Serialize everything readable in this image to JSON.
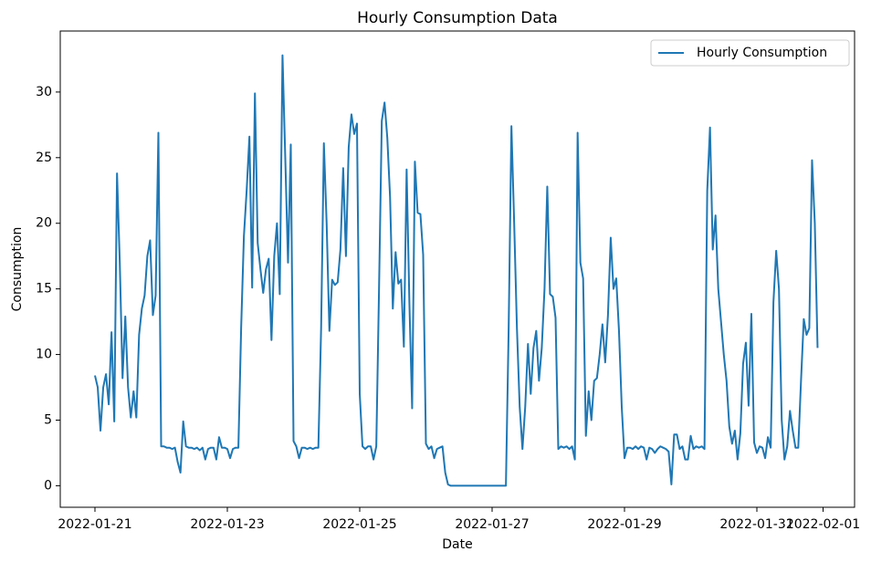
{
  "chart_data": {
    "type": "line",
    "title": "Hourly Consumption Data",
    "xlabel": "Date",
    "ylabel": "Consumption",
    "legend": "upper right",
    "xlim": [
      "2022-01-20T11:25",
      "2022-02-01T11:25"
    ],
    "xticks": [
      "2022-01-21",
      "2022-01-23",
      "2022-01-25",
      "2022-01-27",
      "2022-01-29",
      "2022-01-31",
      "2022-02-01"
    ],
    "ylim": [
      -1.64,
      34.65
    ],
    "yticks": [
      0,
      5,
      10,
      15,
      20,
      25,
      30
    ],
    "x": [
      "2022-01-21T00:00",
      "2022-01-21T01:00",
      "2022-01-21T02:00",
      "2022-01-21T03:00",
      "2022-01-21T04:00",
      "2022-01-21T05:00",
      "2022-01-21T06:00",
      "2022-01-21T07:00",
      "2022-01-21T08:00",
      "2022-01-21T09:00",
      "2022-01-21T10:00",
      "2022-01-21T11:00",
      "2022-01-21T12:00",
      "2022-01-21T13:00",
      "2022-01-21T14:00",
      "2022-01-21T15:00",
      "2022-01-21T16:00",
      "2022-01-21T17:00",
      "2022-01-21T18:00",
      "2022-01-21T19:00",
      "2022-01-21T20:00",
      "2022-01-21T21:00",
      "2022-01-21T22:00",
      "2022-01-21T23:00",
      "2022-01-22T00:00",
      "2022-01-22T01:00",
      "2022-01-22T02:00",
      "2022-01-22T03:00",
      "2022-01-22T04:00",
      "2022-01-22T05:00",
      "2022-01-22T06:00",
      "2022-01-22T07:00",
      "2022-01-22T08:00",
      "2022-01-22T09:00",
      "2022-01-22T10:00",
      "2022-01-22T11:00",
      "2022-01-22T12:00",
      "2022-01-22T13:00",
      "2022-01-22T14:00",
      "2022-01-22T15:00",
      "2022-01-22T16:00",
      "2022-01-22T17:00",
      "2022-01-22T18:00",
      "2022-01-22T19:00",
      "2022-01-22T20:00",
      "2022-01-22T21:00",
      "2022-01-22T22:00",
      "2022-01-22T23:00",
      "2022-01-23T00:00",
      "2022-01-23T01:00",
      "2022-01-23T02:00",
      "2022-01-23T03:00",
      "2022-01-23T04:00",
      "2022-01-23T05:00",
      "2022-01-23T06:00",
      "2022-01-23T07:00",
      "2022-01-23T08:00",
      "2022-01-23T09:00",
      "2022-01-23T10:00",
      "2022-01-23T11:00",
      "2022-01-23T12:00",
      "2022-01-23T13:00",
      "2022-01-23T14:00",
      "2022-01-23T15:00",
      "2022-01-23T16:00",
      "2022-01-23T17:00",
      "2022-01-23T18:00",
      "2022-01-23T19:00",
      "2022-01-23T20:00",
      "2022-01-23T21:00",
      "2022-01-23T22:00",
      "2022-01-23T23:00",
      "2022-01-24T00:00",
      "2022-01-24T01:00",
      "2022-01-24T02:00",
      "2022-01-24T03:00",
      "2022-01-24T04:00",
      "2022-01-24T05:00",
      "2022-01-24T06:00",
      "2022-01-24T07:00",
      "2022-01-24T08:00",
      "2022-01-24T09:00",
      "2022-01-24T10:00",
      "2022-01-24T11:00",
      "2022-01-24T12:00",
      "2022-01-24T13:00",
      "2022-01-24T14:00",
      "2022-01-24T15:00",
      "2022-01-24T16:00",
      "2022-01-24T17:00",
      "2022-01-24T18:00",
      "2022-01-24T19:00",
      "2022-01-24T20:00",
      "2022-01-24T21:00",
      "2022-01-24T22:00",
      "2022-01-24T23:00",
      "2022-01-25T00:00",
      "2022-01-25T01:00",
      "2022-01-25T02:00",
      "2022-01-25T03:00",
      "2022-01-25T04:00",
      "2022-01-25T05:00",
      "2022-01-25T06:00",
      "2022-01-25T07:00",
      "2022-01-25T08:00",
      "2022-01-25T09:00",
      "2022-01-25T10:00",
      "2022-01-25T11:00",
      "2022-01-25T12:00",
      "2022-01-25T13:00",
      "2022-01-25T14:00",
      "2022-01-25T15:00",
      "2022-01-25T16:00",
      "2022-01-25T17:00",
      "2022-01-25T18:00",
      "2022-01-25T19:00",
      "2022-01-25T20:00",
      "2022-01-25T21:00",
      "2022-01-25T22:00",
      "2022-01-25T23:00",
      "2022-01-26T00:00",
      "2022-01-26T01:00",
      "2022-01-26T02:00",
      "2022-01-26T03:00",
      "2022-01-26T04:00",
      "2022-01-26T05:00",
      "2022-01-26T06:00",
      "2022-01-26T07:00",
      "2022-01-26T08:00",
      "2022-01-26T09:00",
      "2022-01-26T10:00",
      "2022-01-26T11:00",
      "2022-01-26T12:00",
      "2022-01-26T13:00",
      "2022-01-26T14:00",
      "2022-01-26T15:00",
      "2022-01-26T16:00",
      "2022-01-26T17:00",
      "2022-01-26T18:00",
      "2022-01-26T19:00",
      "2022-01-26T20:00",
      "2022-01-26T21:00",
      "2022-01-26T22:00",
      "2022-01-26T23:00",
      "2022-01-27T00:00",
      "2022-01-27T01:00",
      "2022-01-27T02:00",
      "2022-01-27T03:00",
      "2022-01-27T04:00",
      "2022-01-27T05:00",
      "2022-01-27T06:00",
      "2022-01-27T07:00",
      "2022-01-27T08:00",
      "2022-01-27T09:00",
      "2022-01-27T10:00",
      "2022-01-27T11:00",
      "2022-01-27T12:00",
      "2022-01-27T13:00",
      "2022-01-27T14:00",
      "2022-01-27T15:00",
      "2022-01-27T16:00",
      "2022-01-27T17:00",
      "2022-01-27T18:00",
      "2022-01-27T19:00",
      "2022-01-27T20:00",
      "2022-01-27T21:00",
      "2022-01-27T22:00",
      "2022-01-27T23:00",
      "2022-01-28T00:00",
      "2022-01-28T01:00",
      "2022-01-28T02:00",
      "2022-01-28T03:00",
      "2022-01-28T04:00",
      "2022-01-28T05:00",
      "2022-01-28T06:00",
      "2022-01-28T07:00",
      "2022-01-28T08:00",
      "2022-01-28T09:00",
      "2022-01-28T10:00",
      "2022-01-28T11:00",
      "2022-01-28T12:00",
      "2022-01-28T13:00",
      "2022-01-28T14:00",
      "2022-01-28T15:00",
      "2022-01-28T16:00",
      "2022-01-28T17:00",
      "2022-01-28T18:00",
      "2022-01-28T19:00",
      "2022-01-28T20:00",
      "2022-01-28T21:00",
      "2022-01-28T22:00",
      "2022-01-28T23:00",
      "2022-01-29T00:00",
      "2022-01-29T01:00",
      "2022-01-29T02:00",
      "2022-01-29T03:00",
      "2022-01-29T04:00",
      "2022-01-29T05:00",
      "2022-01-29T06:00",
      "2022-01-29T07:00",
      "2022-01-29T08:00",
      "2022-01-29T09:00",
      "2022-01-29T10:00",
      "2022-01-29T11:00",
      "2022-01-29T12:00",
      "2022-01-29T13:00",
      "2022-01-29T14:00",
      "2022-01-29T15:00",
      "2022-01-29T16:00",
      "2022-01-29T17:00",
      "2022-01-29T18:00",
      "2022-01-29T19:00",
      "2022-01-29T20:00",
      "2022-01-29T21:00",
      "2022-01-29T22:00",
      "2022-01-29T23:00",
      "2022-01-30T00:00",
      "2022-01-30T01:00",
      "2022-01-30T02:00",
      "2022-01-30T03:00",
      "2022-01-30T04:00",
      "2022-01-30T05:00",
      "2022-01-30T06:00",
      "2022-01-30T07:00",
      "2022-01-30T08:00",
      "2022-01-30T09:00",
      "2022-01-30T10:00",
      "2022-01-30T11:00",
      "2022-01-30T12:00",
      "2022-01-30T13:00",
      "2022-01-30T14:00",
      "2022-01-30T15:00",
      "2022-01-30T16:00",
      "2022-01-30T17:00",
      "2022-01-30T18:00",
      "2022-01-30T19:00",
      "2022-01-30T20:00",
      "2022-01-30T21:00",
      "2022-01-30T22:00",
      "2022-01-30T23:00",
      "2022-01-31T00:00",
      "2022-01-31T01:00",
      "2022-01-31T02:00",
      "2022-01-31T03:00",
      "2022-01-31T04:00",
      "2022-01-31T05:00",
      "2022-01-31T06:00",
      "2022-01-31T07:00",
      "2022-01-31T08:00",
      "2022-01-31T09:00",
      "2022-01-31T10:00",
      "2022-01-31T11:00",
      "2022-01-31T12:00",
      "2022-01-31T13:00",
      "2022-01-31T14:00",
      "2022-01-31T15:00",
      "2022-01-31T16:00",
      "2022-01-31T17:00",
      "2022-01-31T18:00",
      "2022-01-31T19:00",
      "2022-01-31T20:00",
      "2022-01-31T21:00",
      "2022-01-31T22:00"
    ],
    "series": [
      {
        "name": "Hourly Consumption",
        "color": "#1f77b4",
        "values": [
          8.4,
          7.5,
          4.2,
          7.5,
          8.5,
          6.2,
          11.7,
          4.9,
          23.8,
          17,
          8.2,
          12.9,
          7.5,
          5.2,
          7.2,
          5.2,
          11.5,
          13.5,
          14.5,
          17.5,
          18.7,
          13,
          14.5,
          26.9,
          3,
          3,
          2.9,
          2.9,
          2.8,
          2.9,
          1.8,
          1.0,
          4.9,
          3,
          2.9,
          2.9,
          2.8,
          2.9,
          2.7,
          2.9,
          2.0,
          2.8,
          2.9,
          2.9,
          2.0,
          3.7,
          2.9,
          2.9,
          2.8,
          2.1,
          2.8,
          2.9,
          2.9,
          12,
          19,
          22.5,
          26.6,
          15.1,
          29.9,
          18.5,
          16.5,
          14.7,
          16.5,
          17.3,
          11.1,
          17.5,
          20,
          14.6,
          32.8,
          25,
          17,
          26,
          3.4,
          3,
          2.1,
          2.9,
          2.9,
          2.8,
          2.9,
          2.8,
          2.9,
          2.9,
          12,
          26.1,
          20,
          11.8,
          15.7,
          15.3,
          15.5,
          18,
          24.2,
          17.5,
          25.8,
          28.3,
          26.8,
          27.6,
          7,
          3,
          2.8,
          3,
          3,
          2,
          3,
          15,
          27.8,
          29.2,
          26.5,
          22,
          13.5,
          17.8,
          15.4,
          15.7,
          10.6,
          24.1,
          14,
          5.9,
          24.7,
          20.8,
          20.7,
          17.6,
          3.2,
          2.8,
          3,
          2.1,
          2.8,
          2.9,
          3,
          1,
          0.1,
          0,
          0,
          0,
          0,
          0,
          0,
          0,
          0,
          0,
          0,
          0,
          0,
          0,
          0,
          0,
          0,
          0,
          0,
          0,
          0,
          0,
          12,
          27.4,
          20,
          12,
          6,
          2.8,
          6,
          10.8,
          7,
          10.5,
          11.8,
          8,
          10.5,
          15,
          22.8,
          14.6,
          14.4,
          12.8,
          2.8,
          3,
          2.9,
          3,
          2.8,
          3,
          2,
          26.9,
          17,
          15.8,
          3.8,
          7.2,
          5,
          8,
          8.2,
          10,
          12.3,
          9.4,
          13,
          18.9,
          15,
          15.8,
          11.8,
          6,
          2.1,
          2.9,
          2.9,
          2.8,
          3,
          2.8,
          3,
          2.9,
          2,
          2.9,
          2.8,
          2.5,
          2.8,
          3,
          2.9,
          2.8,
          2.6,
          0.1,
          3.9,
          3.9,
          2.8,
          3,
          2,
          2,
          3.8,
          2.8,
          3,
          2.9,
          3,
          2.8,
          22.5,
          27.3,
          18,
          20.6,
          15,
          12.5,
          10,
          8,
          4.5,
          3.2,
          4.2,
          2,
          4,
          9.3,
          10.9,
          6.1,
          13.1,
          3.3,
          2.5,
          3,
          2.9,
          2.1,
          3.7,
          2.9,
          14,
          17.9,
          15,
          5,
          2,
          3,
          5.7,
          4.2,
          2.9,
          2.9,
          8,
          12.7,
          11.5,
          12,
          24.8,
          20,
          10.5
        ]
      }
    ]
  }
}
